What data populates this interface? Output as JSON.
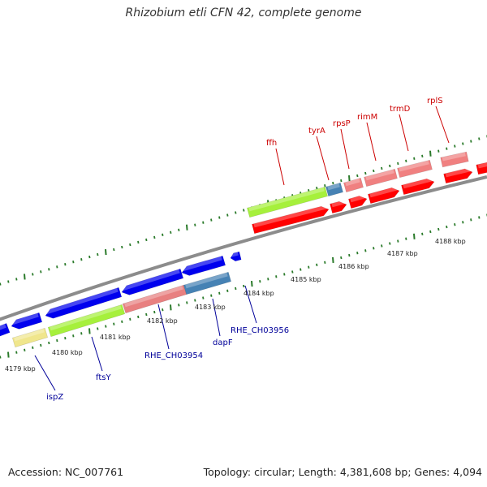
{
  "title": "Rhizobium etli CFN 42, complete genome",
  "footer": {
    "accession": "Accession: NC_007761",
    "stats": "Topology: circular; Length: 4,381,608 bp; Genes: 4,094"
  },
  "colors": {
    "forward_cds": "#ff0000",
    "forward_light": "#f08080",
    "reverse_cds": "#0000ee",
    "reverse_light": "#e88080",
    "rna": "#a6f03c",
    "steel": "#4682b4",
    "pseudo": "#f0e68c",
    "backbone": "#8c8c8c",
    "tick": "#2a7a2a",
    "label_forward": "#cc0000",
    "label_reverse": "#000099"
  },
  "ticks": {
    "labels": [
      "4179 kbp",
      "4180 kbp",
      "4181 kbp",
      "4182 kbp",
      "4183 kbp",
      "4184 kbp",
      "4185 kbp",
      "4186 kbp",
      "4187 kbp",
      "4188 kbp"
    ]
  },
  "genes_forward": [
    {
      "name": "ffh",
      "strand": "+",
      "color_role": "rna"
    },
    {
      "name": "tyrA",
      "strand": "+",
      "color_role": "steel"
    },
    {
      "name": "rpsP",
      "strand": "+",
      "color_role": "forward_light"
    },
    {
      "name": "rimM",
      "strand": "+",
      "color_role": "forward_light"
    },
    {
      "name": "trmD",
      "strand": "+",
      "color_role": "forward_light"
    },
    {
      "name": "rplS",
      "strand": "+",
      "color_role": "forward_light"
    }
  ],
  "genes_reverse": [
    {
      "name": "ispZ",
      "strand": "-",
      "color_role": "pseudo"
    },
    {
      "name": "ftsY",
      "strand": "-",
      "color_role": "rna"
    },
    {
      "name": "RHE_CH03954",
      "strand": "-",
      "color_role": "reverse_light"
    },
    {
      "name": "dapF",
      "strand": "-",
      "color_role": "steel"
    },
    {
      "name": "RHE_CH03956",
      "strand": "-",
      "color_role": "reverse_cds"
    }
  ]
}
